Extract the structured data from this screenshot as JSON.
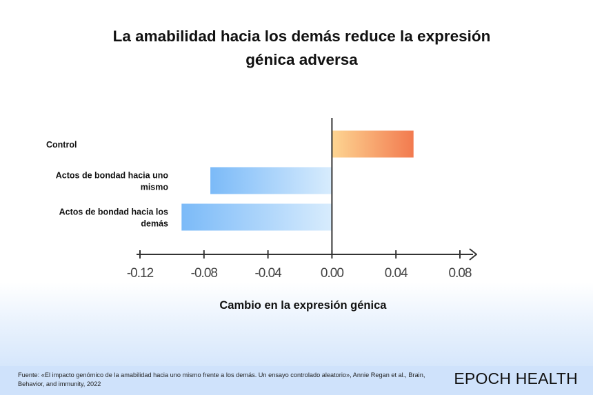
{
  "chart_data": {
    "type": "bar",
    "orientation": "horizontal",
    "title": "La amabilidad hacia los demás reduce la expresión génica adversa",
    "xlabel": "Cambio en la expresión génica",
    "ylabel": "",
    "categories": [
      "Control",
      "Actos de bondad hacia uno mismo",
      "Actos de bondad  hacia los demás"
    ],
    "values": [
      0.051,
      -0.076,
      -0.094
    ],
    "xlim": [
      -0.12,
      0.08
    ],
    "xticks": [
      -0.12,
      -0.08,
      -0.04,
      0.0,
      0.04,
      0.08
    ],
    "xtick_labels": [
      "-0.12",
      "-0.08",
      "-0.04",
      "0.00",
      "0.04",
      "0.08"
    ],
    "grid": false,
    "colors": {
      "positive_start": "#fdd592",
      "positive_end": "#f27a4f",
      "negative_start": "#d8ecfd",
      "negative_end": "#7bbaf8",
      "axis": "#333333"
    }
  },
  "footer": {
    "source": "Fuente: «El impacto genómico de la amabilidad hacia uno mismo frente a los demás. Un ensayo controlado aleatorio», Annie Regan et al., Brain, Behavior, and immunity, 2022",
    "brand": "EPOCH HEALTH"
  }
}
